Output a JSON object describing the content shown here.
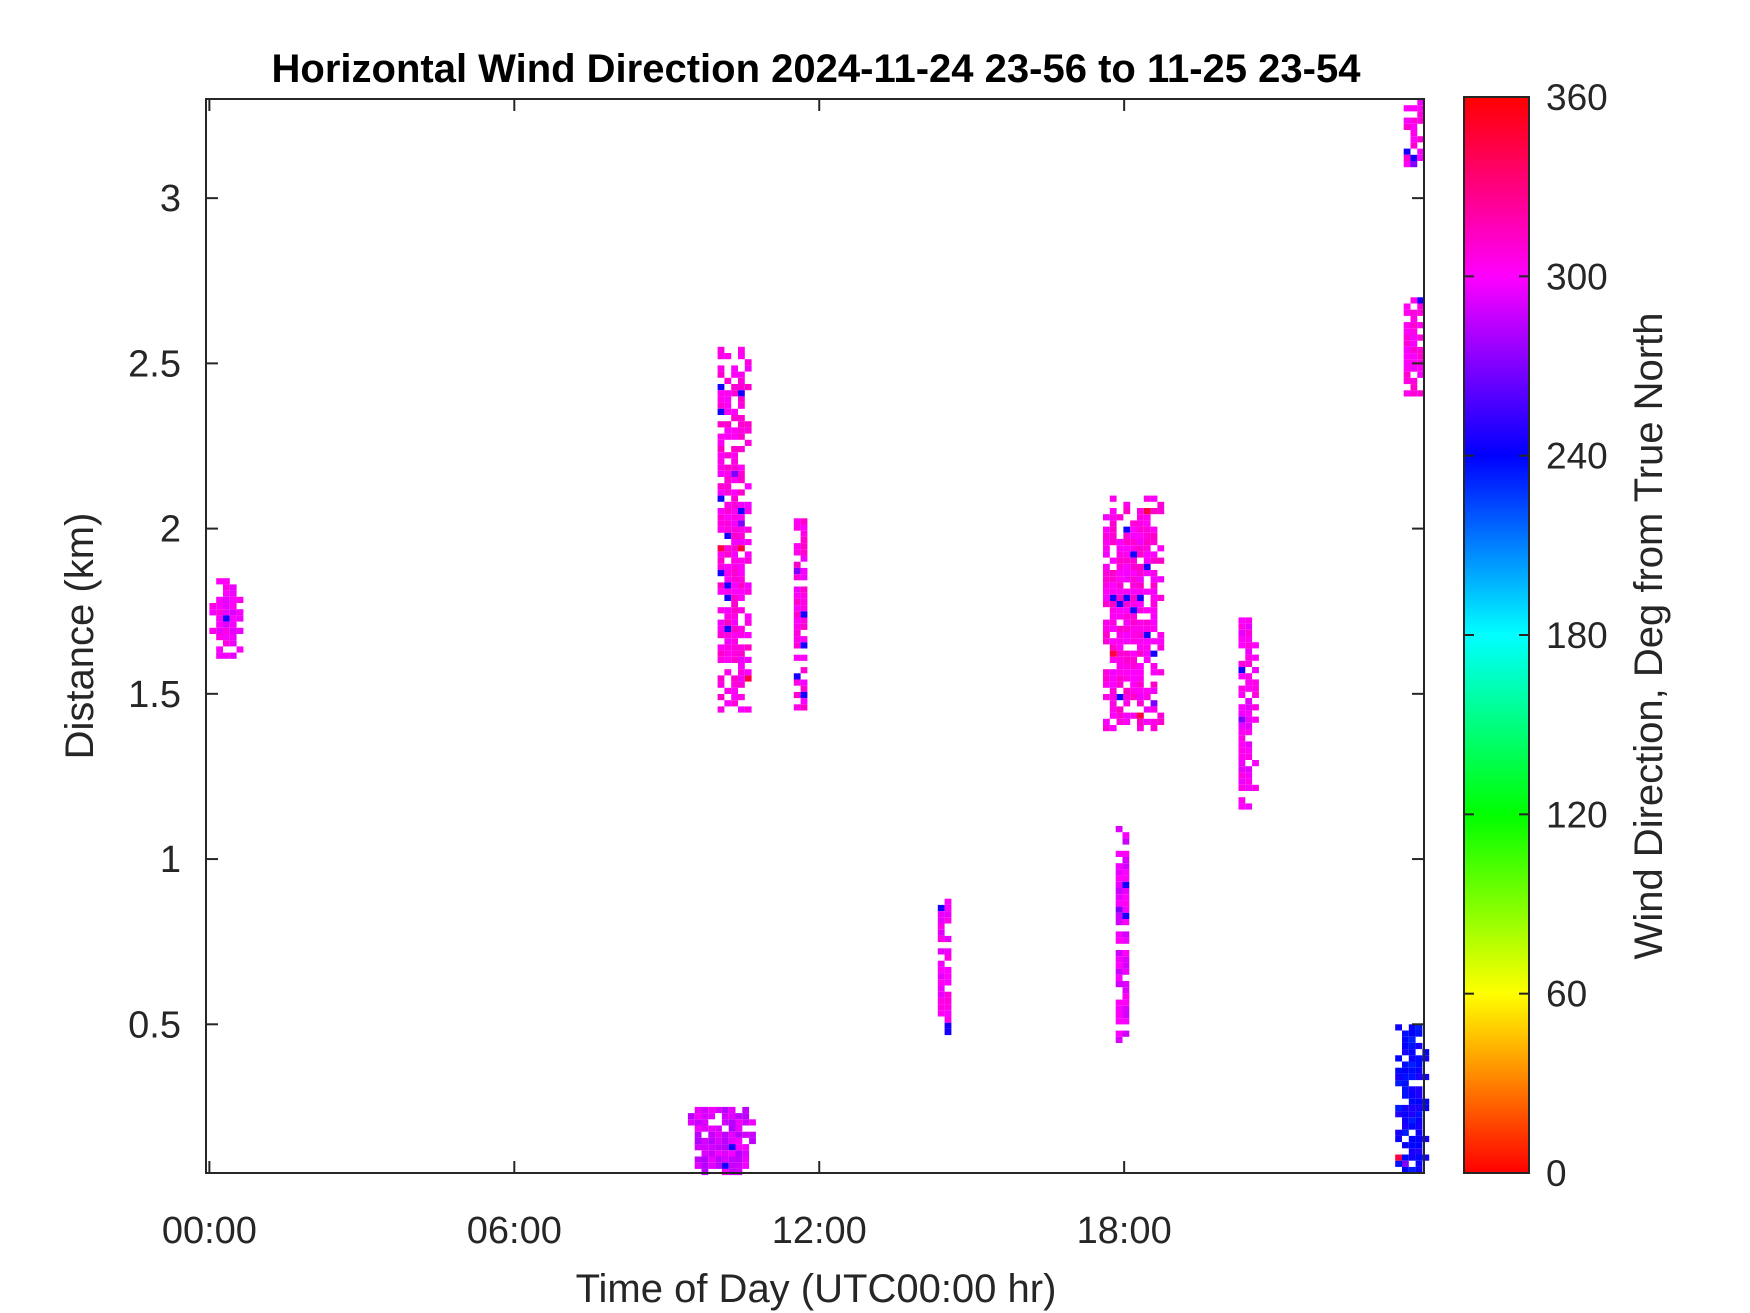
{
  "chart_data": {
    "type": "heatmap",
    "title": "Horizontal Wind Direction 2024-11-24 23-56 to 11-25 23-54",
    "xlabel": "Time of Day (UTC00:00 hr)",
    "ylabel": "Distance (km)",
    "xlim": [
      "2024-11-24 23:56",
      "2024-11-25 23:54"
    ],
    "ylim": [
      0.05,
      3.3
    ],
    "x_ticks": [
      "00:00",
      "06:00",
      "12:00",
      "18:00"
    ],
    "y_ticks": [
      "0.5",
      "1",
      "1.5",
      "2",
      "2.5",
      "3"
    ],
    "grid": false,
    "colorbar": {
      "label": "Wind Direction, Deg from True North",
      "range": [
        0,
        360
      ],
      "ticks": [
        "0",
        "60",
        "120",
        "180",
        "240",
        "300",
        "360"
      ],
      "colormap": [
        "#ff0000",
        "#ffff00",
        "#00ff00",
        "#00ffff",
        "#0000ff",
        "#ff00ff",
        "#ff0000"
      ]
    },
    "clusters": [
      {
        "t_start": "00:00",
        "t_end": "00:40",
        "d_start": 1.62,
        "d_end": 1.85,
        "direction_deg": 300
      },
      {
        "t_start": "09:25",
        "t_end": "10:40",
        "d_start": 0.05,
        "d_end": 0.25,
        "direction_deg": 290
      },
      {
        "t_start": "10:00",
        "t_end": "10:35",
        "d_start": 1.45,
        "d_end": 2.55,
        "direction_deg": 305
      },
      {
        "t_start": "11:30",
        "t_end": "11:45",
        "d_start": 1.45,
        "d_end": 2.05,
        "direction_deg": 305
      },
      {
        "t_start": "14:20",
        "t_end": "14:35",
        "d_start": 0.45,
        "d_end": 0.88,
        "direction_deg": 300
      },
      {
        "t_start": "17:35",
        "t_end": "18:45",
        "d_start": 1.4,
        "d_end": 2.1,
        "direction_deg": 305
      },
      {
        "t_start": "17:50",
        "t_end": "18:05",
        "d_start": 0.45,
        "d_end": 1.1,
        "direction_deg": 295
      },
      {
        "t_start": "20:15",
        "t_end": "20:35",
        "d_start": 1.15,
        "d_end": 1.75,
        "direction_deg": 300
      },
      {
        "t_start": "23:20",
        "t_end": "23:54",
        "d_start": 0.05,
        "d_end": 0.5,
        "direction_deg": 240
      },
      {
        "t_start": "23:30",
        "t_end": "23:54",
        "d_start": 2.4,
        "d_end": 2.7,
        "direction_deg": 305
      },
      {
        "t_start": "23:30",
        "t_end": "23:54",
        "d_start": 3.1,
        "d_end": 3.3,
        "direction_deg": 305
      }
    ]
  }
}
